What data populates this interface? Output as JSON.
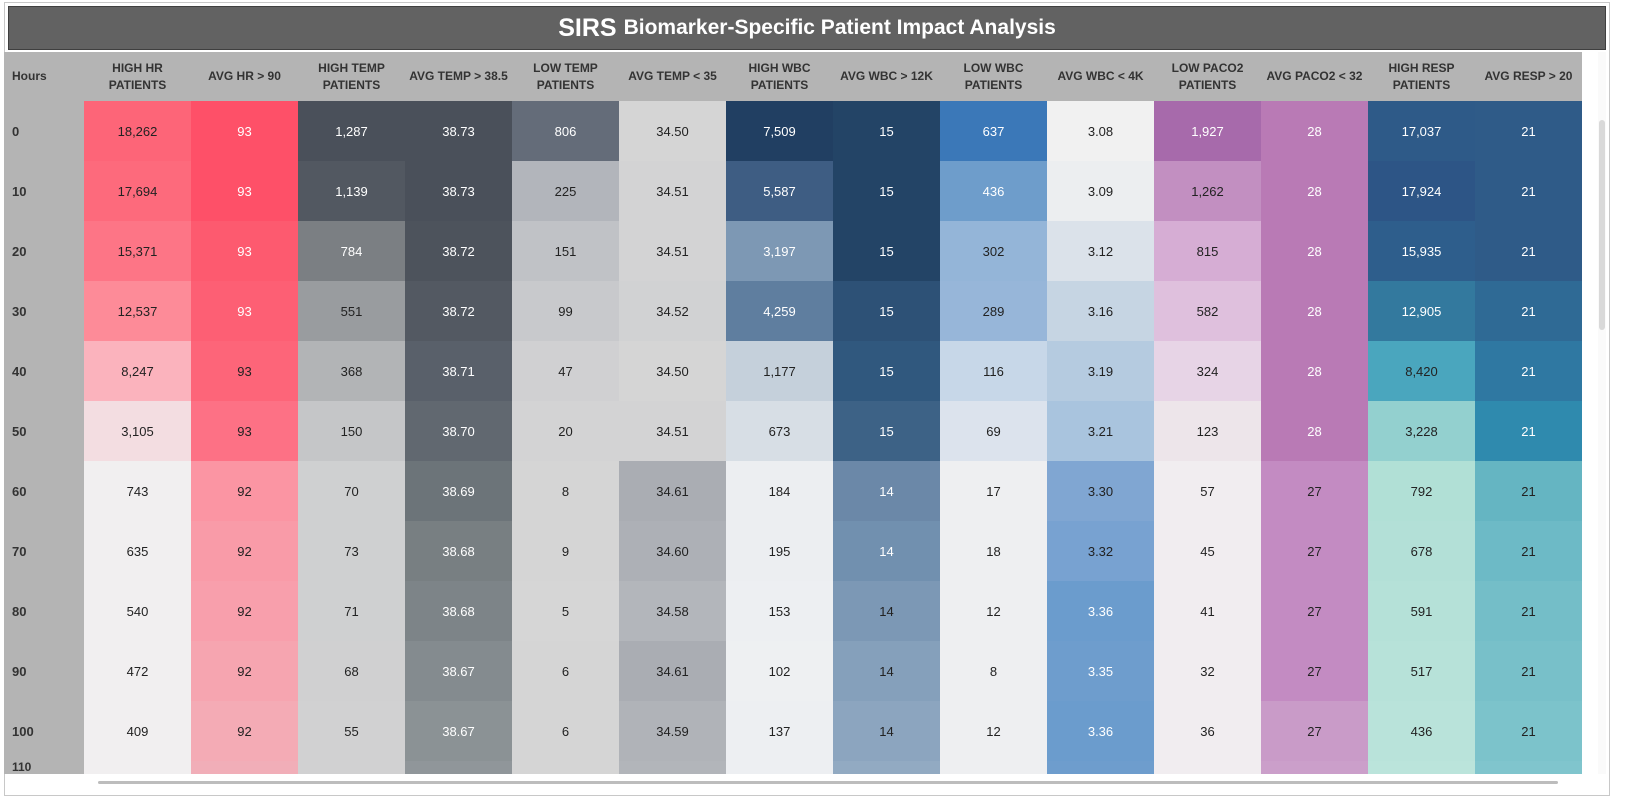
{
  "dashboard": {
    "title_main": "SIRS",
    "title_rest": "Biomarker-Specific Patient Impact Analysis"
  },
  "columns": [
    {
      "key": "hours",
      "label": "Hours"
    },
    {
      "key": "high_hr",
      "label": "HIGH HR\nPATIENTS"
    },
    {
      "key": "avg_hr",
      "label": "AVG HR > 90"
    },
    {
      "key": "high_temp",
      "label": "HIGH TEMP\nPATIENTS"
    },
    {
      "key": "avg_temp_hi",
      "label": "AVG TEMP > 38.5"
    },
    {
      "key": "low_temp",
      "label": "LOW TEMP\nPATIENTS"
    },
    {
      "key": "avg_temp_lo",
      "label": "AVG TEMP < 35"
    },
    {
      "key": "high_wbc",
      "label": "HIGH WBC\nPATIENTS"
    },
    {
      "key": "avg_wbc_hi",
      "label": "AVG WBC > 12K"
    },
    {
      "key": "low_wbc",
      "label": "LOW WBC\nPATIENTS"
    },
    {
      "key": "avg_wbc_lo",
      "label": "AVG WBC < 4K"
    },
    {
      "key": "low_paco2",
      "label": "LOW PACO2\nPATIENTS"
    },
    {
      "key": "avg_paco2",
      "label": "AVG PACO2 < 32"
    },
    {
      "key": "high_resp",
      "label": "HIGH RESP\nPATIENTS"
    },
    {
      "key": "avg_resp",
      "label": "AVG RESP > 20"
    }
  ],
  "rows": [
    {
      "hours": "0",
      "cells": [
        {
          "v": "18,262",
          "bg": "#fd6578",
          "fg": "#222"
        },
        {
          "v": "93",
          "bg": "#fe5068",
          "fg": "#fff"
        },
        {
          "v": "1,287",
          "bg": "#4a505a",
          "fg": "#fff"
        },
        {
          "v": "38.73",
          "bg": "#4a505a",
          "fg": "#fff"
        },
        {
          "v": "806",
          "bg": "#646c79",
          "fg": "#fff"
        },
        {
          "v": "34.50",
          "bg": "#d5d5d5",
          "fg": "#222"
        },
        {
          "v": "7,509",
          "bg": "#213f62",
          "fg": "#fff"
        },
        {
          "v": "15",
          "bg": "#234466",
          "fg": "#fff"
        },
        {
          "v": "637",
          "bg": "#3b78b8",
          "fg": "#fff"
        },
        {
          "v": "3.08",
          "bg": "#f1f1f1",
          "fg": "#222"
        },
        {
          "v": "1,927",
          "bg": "#a76aab",
          "fg": "#fff"
        },
        {
          "v": "28",
          "bg": "#b97ab5",
          "fg": "#fff"
        },
        {
          "v": "17,037",
          "bg": "#2e5a88",
          "fg": "#fff"
        },
        {
          "v": "21",
          "bg": "#2f5b88",
          "fg": "#fff"
        }
      ]
    },
    {
      "hours": "10",
      "cells": [
        {
          "v": "17,694",
          "bg": "#fd6a7c",
          "fg": "#222"
        },
        {
          "v": "93",
          "bg": "#fe5068",
          "fg": "#fff"
        },
        {
          "v": "1,139",
          "bg": "#525861",
          "fg": "#fff"
        },
        {
          "v": "38.73",
          "bg": "#4a505a",
          "fg": "#fff"
        },
        {
          "v": "225",
          "bg": "#b2b5bb",
          "fg": "#222"
        },
        {
          "v": "34.51",
          "bg": "#d3d3d4",
          "fg": "#222"
        },
        {
          "v": "5,587",
          "bg": "#3e5d83",
          "fg": "#fff"
        },
        {
          "v": "15",
          "bg": "#234466",
          "fg": "#fff"
        },
        {
          "v": "436",
          "bg": "#6e9dcb",
          "fg": "#fff"
        },
        {
          "v": "3.09",
          "bg": "#eceef0",
          "fg": "#222"
        },
        {
          "v": "1,262",
          "bg": "#c28fc1",
          "fg": "#222"
        },
        {
          "v": "28",
          "bg": "#b97ab5",
          "fg": "#fff"
        },
        {
          "v": "17,924",
          "bg": "#2d5586",
          "fg": "#fff"
        },
        {
          "v": "21",
          "bg": "#2f5b88",
          "fg": "#fff"
        }
      ]
    },
    {
      "hours": "20",
      "cells": [
        {
          "v": "15,371",
          "bg": "#fd7586",
          "fg": "#222"
        },
        {
          "v": "93",
          "bg": "#fd5a6f",
          "fg": "#fff"
        },
        {
          "v": "784",
          "bg": "#7b7f83",
          "fg": "#fff"
        },
        {
          "v": "38.72",
          "bg": "#4d535c",
          "fg": "#fff"
        },
        {
          "v": "151",
          "bg": "#c0c2c6",
          "fg": "#222"
        },
        {
          "v": "34.51",
          "bg": "#d3d3d4",
          "fg": "#222"
        },
        {
          "v": "3,197",
          "bg": "#7d98b4",
          "fg": "#fff"
        },
        {
          "v": "15",
          "bg": "#234466",
          "fg": "#fff"
        },
        {
          "v": "302",
          "bg": "#94b5d8",
          "fg": "#222"
        },
        {
          "v": "3.12",
          "bg": "#dbe2ea",
          "fg": "#222"
        },
        {
          "v": "815",
          "bg": "#d6add4",
          "fg": "#222"
        },
        {
          "v": "28",
          "bg": "#b97ab5",
          "fg": "#fff"
        },
        {
          "v": "15,935",
          "bg": "#2e5e8c",
          "fg": "#fff"
        },
        {
          "v": "21",
          "bg": "#2f5b88",
          "fg": "#fff"
        }
      ]
    },
    {
      "hours": "30",
      "cells": [
        {
          "v": "12,537",
          "bg": "#fd8b98",
          "fg": "#222"
        },
        {
          "v": "93",
          "bg": "#fd5f74",
          "fg": "#fff"
        },
        {
          "v": "551",
          "bg": "#999c9f",
          "fg": "#222"
        },
        {
          "v": "38.72",
          "bg": "#535962",
          "fg": "#fff"
        },
        {
          "v": "99",
          "bg": "#c8c9cc",
          "fg": "#222"
        },
        {
          "v": "34.52",
          "bg": "#d1d2d3",
          "fg": "#222"
        },
        {
          "v": "4,259",
          "bg": "#5f7e9f",
          "fg": "#fff"
        },
        {
          "v": "15",
          "bg": "#2d5176",
          "fg": "#fff"
        },
        {
          "v": "289",
          "bg": "#97b6d9",
          "fg": "#222"
        },
        {
          "v": "3.16",
          "bg": "#c6d5e3",
          "fg": "#222"
        },
        {
          "v": "582",
          "bg": "#dfc0dd",
          "fg": "#222"
        },
        {
          "v": "28",
          "bg": "#b97ab5",
          "fg": "#fff"
        },
        {
          "v": "12,905",
          "bg": "#33799e",
          "fg": "#fff"
        },
        {
          "v": "21",
          "bg": "#2f6a95",
          "fg": "#fff"
        }
      ]
    },
    {
      "hours": "40",
      "cells": [
        {
          "v": "8,247",
          "bg": "#fbb3bd",
          "fg": "#222"
        },
        {
          "v": "93",
          "bg": "#fd6579",
          "fg": "#222"
        },
        {
          "v": "368",
          "bg": "#b2b4b6",
          "fg": "#222"
        },
        {
          "v": "38.71",
          "bg": "#59606a",
          "fg": "#fff"
        },
        {
          "v": "47",
          "bg": "#d0d0d2",
          "fg": "#222"
        },
        {
          "v": "34.50",
          "bg": "#d5d5d5",
          "fg": "#222"
        },
        {
          "v": "1,177",
          "bg": "#c5d0db",
          "fg": "#222"
        },
        {
          "v": "15",
          "bg": "#30587e",
          "fg": "#fff"
        },
        {
          "v": "116",
          "bg": "#c7d7e8",
          "fg": "#222"
        },
        {
          "v": "3.19",
          "bg": "#b5cbe0",
          "fg": "#222"
        },
        {
          "v": "324",
          "bg": "#e7d4e6",
          "fg": "#222"
        },
        {
          "v": "28",
          "bg": "#b97ab5",
          "fg": "#fff"
        },
        {
          "v": "8,420",
          "bg": "#4aa6be",
          "fg": "#222"
        },
        {
          "v": "21",
          "bg": "#2f78a2",
          "fg": "#fff"
        }
      ]
    },
    {
      "hours": "50",
      "cells": [
        {
          "v": "3,105",
          "bg": "#f3dde1",
          "fg": "#222"
        },
        {
          "v": "93",
          "bg": "#fd7185",
          "fg": "#222"
        },
        {
          "v": "150",
          "bg": "#c5c6c8",
          "fg": "#222"
        },
        {
          "v": "38.70",
          "bg": "#616870",
          "fg": "#fff"
        },
        {
          "v": "20",
          "bg": "#d3d3d4",
          "fg": "#222"
        },
        {
          "v": "34.51",
          "bg": "#d3d3d4",
          "fg": "#222"
        },
        {
          "v": "673",
          "bg": "#d7dee5",
          "fg": "#222"
        },
        {
          "v": "15",
          "bg": "#3d6286",
          "fg": "#fff"
        },
        {
          "v": "69",
          "bg": "#dce3ed",
          "fg": "#222"
        },
        {
          "v": "3.21",
          "bg": "#a9c4de",
          "fg": "#222"
        },
        {
          "v": "123",
          "bg": "#ede5ea",
          "fg": "#222"
        },
        {
          "v": "28",
          "bg": "#b97ab5",
          "fg": "#fff"
        },
        {
          "v": "3,228",
          "bg": "#93d0cf",
          "fg": "#222"
        },
        {
          "v": "21",
          "bg": "#2f8aae",
          "fg": "#fff"
        }
      ]
    },
    {
      "hours": "60",
      "cells": [
        {
          "v": "743",
          "bg": "#f1eff0",
          "fg": "#222"
        },
        {
          "v": "92",
          "bg": "#fb95a3",
          "fg": "#222"
        },
        {
          "v": "70",
          "bg": "#cfd0d1",
          "fg": "#222"
        },
        {
          "v": "38.69",
          "bg": "#6c7479",
          "fg": "#fff"
        },
        {
          "v": "8",
          "bg": "#d5d5d5",
          "fg": "#222"
        },
        {
          "v": "34.61",
          "bg": "#aaadb3",
          "fg": "#222"
        },
        {
          "v": "184",
          "bg": "#eceef1",
          "fg": "#222"
        },
        {
          "v": "14",
          "bg": "#6b88a8",
          "fg": "#fff"
        },
        {
          "v": "17",
          "bg": "#eeeff1",
          "fg": "#222"
        },
        {
          "v": "3.30",
          "bg": "#80a6d2",
          "fg": "#222"
        },
        {
          "v": "57",
          "bg": "#f1edf0",
          "fg": "#222"
        },
        {
          "v": "27",
          "bg": "#c38bc2",
          "fg": "#222"
        },
        {
          "v": "792",
          "bg": "#b1e0d6",
          "fg": "#222"
        },
        {
          "v": "21",
          "bg": "#65b5c2",
          "fg": "#222"
        }
      ]
    },
    {
      "hours": "70",
      "cells": [
        {
          "v": "635",
          "bg": "#f1eff0",
          "fg": "#222"
        },
        {
          "v": "92",
          "bg": "#f99ba8",
          "fg": "#222"
        },
        {
          "v": "73",
          "bg": "#cfd0d1",
          "fg": "#222"
        },
        {
          "v": "38.68",
          "bg": "#787f82",
          "fg": "#fff"
        },
        {
          "v": "9",
          "bg": "#d5d5d5",
          "fg": "#222"
        },
        {
          "v": "34.60",
          "bg": "#adb0b6",
          "fg": "#222"
        },
        {
          "v": "195",
          "bg": "#eceef1",
          "fg": "#222"
        },
        {
          "v": "14",
          "bg": "#7190af",
          "fg": "#fff"
        },
        {
          "v": "18",
          "bg": "#eeeff1",
          "fg": "#222"
        },
        {
          "v": "3.32",
          "bg": "#78a2d1",
          "fg": "#222"
        },
        {
          "v": "45",
          "bg": "#f1edf0",
          "fg": "#222"
        },
        {
          "v": "27",
          "bg": "#c38bc2",
          "fg": "#222"
        },
        {
          "v": "678",
          "bg": "#b3e0d7",
          "fg": "#222"
        },
        {
          "v": "21",
          "bg": "#6dbac6",
          "fg": "#222"
        }
      ]
    },
    {
      "hours": "80",
      "cells": [
        {
          "v": "540",
          "bg": "#f1eff0",
          "fg": "#222"
        },
        {
          "v": "92",
          "bg": "#f89fac",
          "fg": "#222"
        },
        {
          "v": "71",
          "bg": "#cfd0d1",
          "fg": "#222"
        },
        {
          "v": "38.68",
          "bg": "#7d8488",
          "fg": "#fff"
        },
        {
          "v": "5",
          "bg": "#d6d6d6",
          "fg": "#222"
        },
        {
          "v": "34.58",
          "bg": "#b3b6bb",
          "fg": "#222"
        },
        {
          "v": "153",
          "bg": "#edeff2",
          "fg": "#222"
        },
        {
          "v": "14",
          "bg": "#7c98b5",
          "fg": "#222"
        },
        {
          "v": "12",
          "bg": "#eeeff1",
          "fg": "#222"
        },
        {
          "v": "3.36",
          "bg": "#6b9ccd",
          "fg": "#fff"
        },
        {
          "v": "41",
          "bg": "#f1edf0",
          "fg": "#222"
        },
        {
          "v": "27",
          "bg": "#c38bc2",
          "fg": "#222"
        },
        {
          "v": "591",
          "bg": "#b5e1d8",
          "fg": "#222"
        },
        {
          "v": "21",
          "bg": "#74bec8",
          "fg": "#222"
        }
      ]
    },
    {
      "hours": "90",
      "cells": [
        {
          "v": "472",
          "bg": "#f1eff0",
          "fg": "#222"
        },
        {
          "v": "92",
          "bg": "#f6a5b0",
          "fg": "#222"
        },
        {
          "v": "68",
          "bg": "#d0d0d1",
          "fg": "#222"
        },
        {
          "v": "38.67",
          "bg": "#848b8f",
          "fg": "#fff"
        },
        {
          "v": "6",
          "bg": "#d5d5d5",
          "fg": "#222"
        },
        {
          "v": "34.61",
          "bg": "#aaadb3",
          "fg": "#222"
        },
        {
          "v": "102",
          "bg": "#eef0f2",
          "fg": "#222"
        },
        {
          "v": "14",
          "bg": "#85a0bb",
          "fg": "#222"
        },
        {
          "v": "8",
          "bg": "#eeeff1",
          "fg": "#222"
        },
        {
          "v": "3.35",
          "bg": "#6e9dcd",
          "fg": "#fff"
        },
        {
          "v": "32",
          "bg": "#f1edf0",
          "fg": "#222"
        },
        {
          "v": "27",
          "bg": "#c38bc2",
          "fg": "#222"
        },
        {
          "v": "517",
          "bg": "#b7e2d9",
          "fg": "#222"
        },
        {
          "v": "21",
          "bg": "#78c0c9",
          "fg": "#222"
        }
      ]
    },
    {
      "hours": "100",
      "cells": [
        {
          "v": "409",
          "bg": "#f1eff0",
          "fg": "#222"
        },
        {
          "v": "92",
          "bg": "#f4abb5",
          "fg": "#222"
        },
        {
          "v": "55",
          "bg": "#d1d1d2",
          "fg": "#222"
        },
        {
          "v": "38.67",
          "bg": "#8b9295",
          "fg": "#fff"
        },
        {
          "v": "6",
          "bg": "#d5d5d5",
          "fg": "#222"
        },
        {
          "v": "34.59",
          "bg": "#b0b3b8",
          "fg": "#222"
        },
        {
          "v": "137",
          "bg": "#edeff2",
          "fg": "#222"
        },
        {
          "v": "14",
          "bg": "#8ca5bf",
          "fg": "#222"
        },
        {
          "v": "12",
          "bg": "#eeeff1",
          "fg": "#222"
        },
        {
          "v": "3.36",
          "bg": "#6b9ccd",
          "fg": "#fff"
        },
        {
          "v": "36",
          "bg": "#f1edf0",
          "fg": "#222"
        },
        {
          "v": "27",
          "bg": "#c99bc8",
          "fg": "#222"
        },
        {
          "v": "436",
          "bg": "#b9e3da",
          "fg": "#222"
        },
        {
          "v": "21",
          "bg": "#7cc3cb",
          "fg": "#222"
        }
      ]
    }
  ],
  "partial_row": {
    "hours": "110",
    "colors": [
      "#f1eff0",
      "#f1aeb8",
      "#d1d1d2",
      "#90969a",
      "#d5d5d5",
      "#b2b5ba",
      "#edeff2",
      "#92aac2",
      "#eeeff1",
      "#6e9dcd",
      "#f1edf0",
      "#cb9fca",
      "#bbe4db",
      "#80c5cd"
    ]
  }
}
